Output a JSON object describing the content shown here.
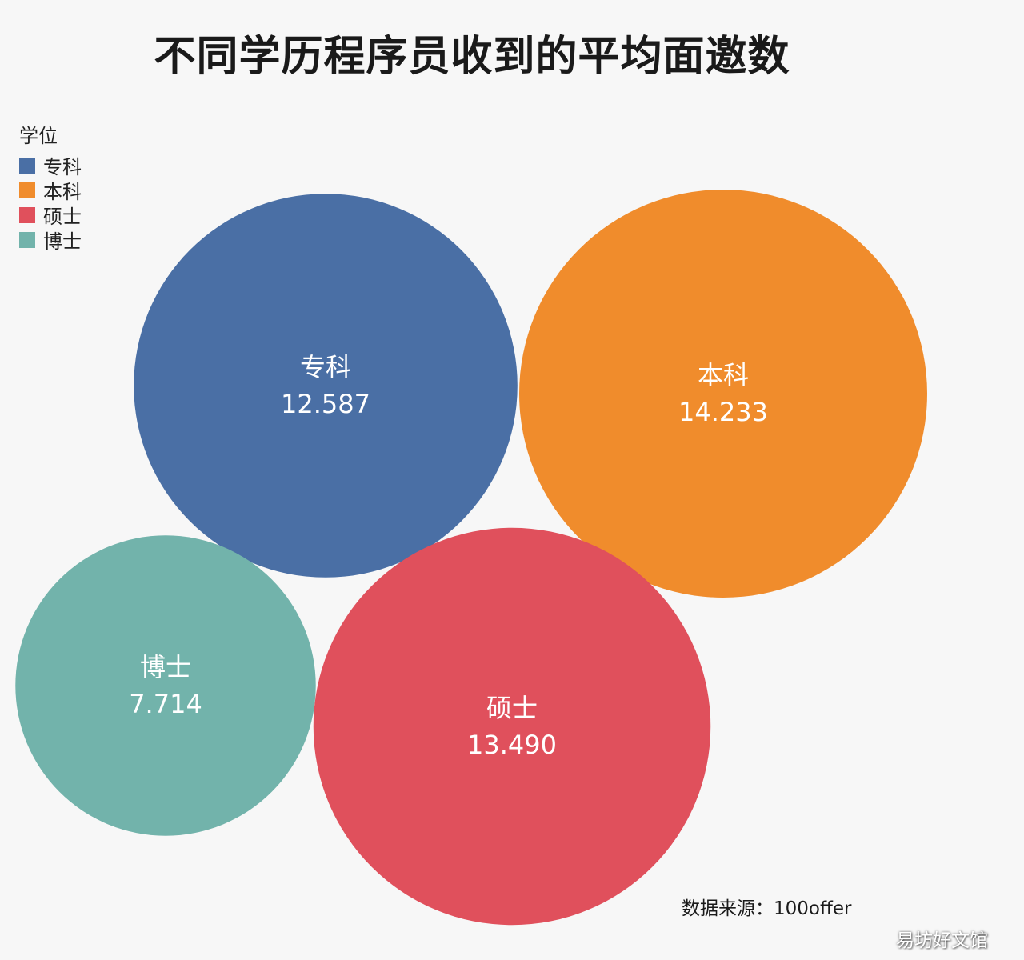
{
  "chart_data": {
    "type": "bubble",
    "title": "不同学历程序员收到的平均面邀数",
    "legend_title": "学位",
    "legend_position": "top-left",
    "source": "数据来源：100offer",
    "watermark": "易坊好文馆",
    "series": [
      {
        "name": "专科",
        "value": 12.587,
        "value_label": "12.587",
        "color": "#4a6fa5"
      },
      {
        "name": "本科",
        "value": 14.233,
        "value_label": "14.233",
        "color": "#f08c2c"
      },
      {
        "name": "硕士",
        "value": 13.49,
        "value_label": "13.490",
        "color": "#e0505c"
      },
      {
        "name": "博士",
        "value": 7.714,
        "value_label": "7.714",
        "color": "#72b3ab"
      }
    ]
  }
}
